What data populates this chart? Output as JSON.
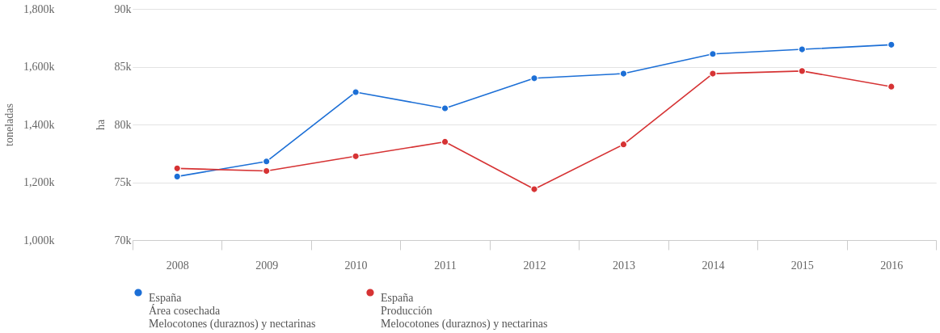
{
  "chart_data": {
    "type": "line",
    "ylabel": "toneladas",
    "y2label": "ha",
    "categories": [
      "2008",
      "2009",
      "2010",
      "2011",
      "2012",
      "2013",
      "2014",
      "2015",
      "2016"
    ],
    "series": [
      {
        "name": "España\nÁrea cosechada\nMelocotones (duraznos) y nectarinas",
        "color": "#1c6fd6",
        "axis": "y2",
        "values": [
          75500,
          76800,
          82800,
          81400,
          84000,
          84400,
          86100,
          86500,
          86900
        ]
      },
      {
        "name": "España\nProducción\nMelocotones (duraznos) y nectarinas",
        "color": "#d63334",
        "axis": "y",
        "values": [
          1248000,
          1239000,
          1290000,
          1340000,
          1176000,
          1331000,
          1576000,
          1585000,
          1531000
        ]
      }
    ],
    "ylim": [
      1000000,
      1800000
    ],
    "yticks": [
      {
        "value": 1000000,
        "label": "1,000k"
      },
      {
        "value": 1200000,
        "label": "1,200k"
      },
      {
        "value": 1400000,
        "label": "1,400k"
      },
      {
        "value": 1600000,
        "label": "1,600k"
      },
      {
        "value": 1800000,
        "label": "1,800k"
      }
    ],
    "y2lim": [
      70000,
      90000
    ],
    "y2ticks": [
      {
        "value": 70000,
        "label": "70k"
      },
      {
        "value": 75000,
        "label": "75k"
      },
      {
        "value": 80000,
        "label": "80k"
      },
      {
        "value": 85000,
        "label": "85k"
      },
      {
        "value": 90000,
        "label": "90k"
      }
    ],
    "grid": "y",
    "legend": "bottom",
    "marker": "circle"
  }
}
